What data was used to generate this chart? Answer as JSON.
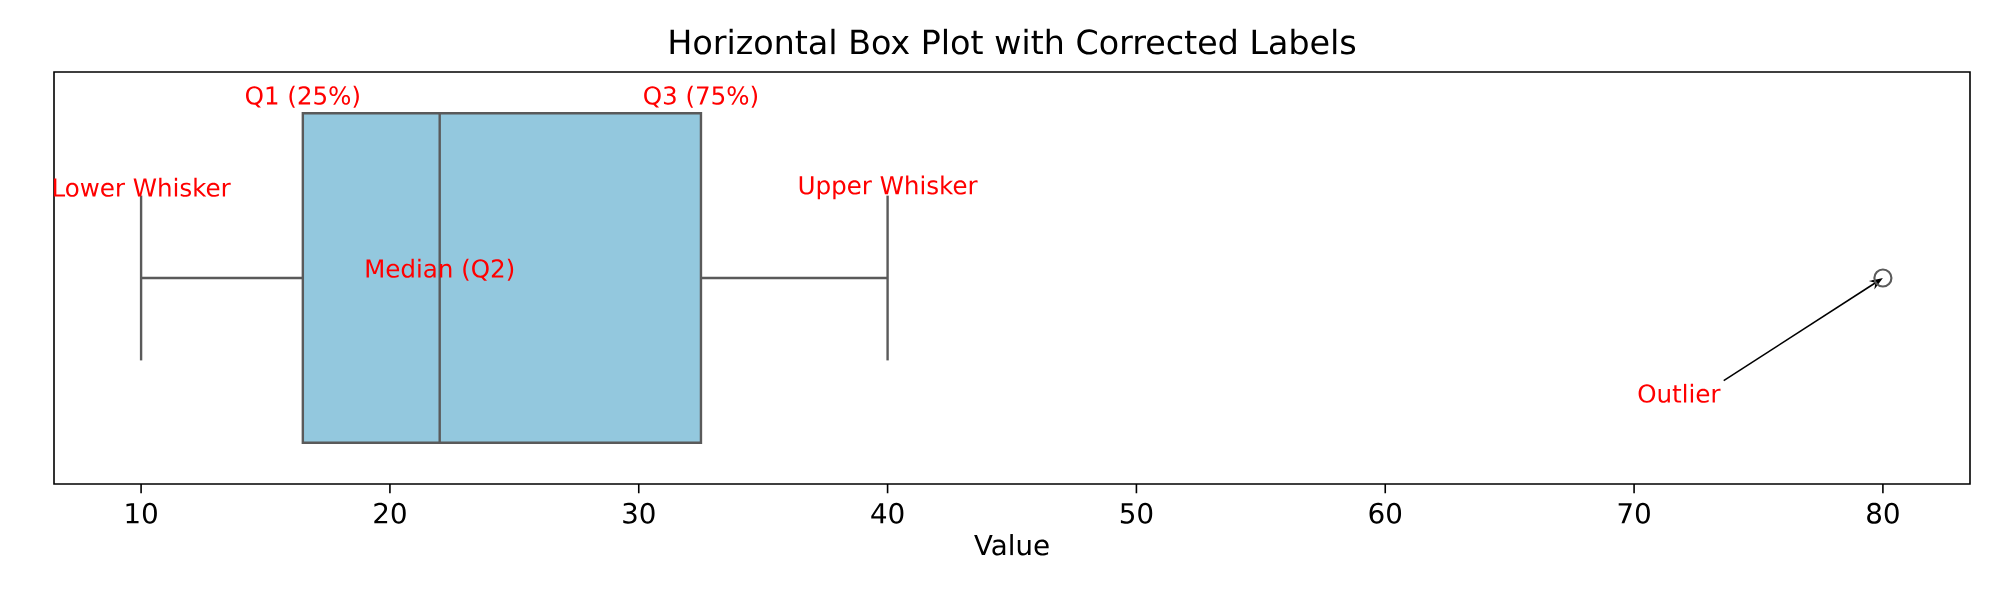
{
  "chart_data": {
    "type": "box",
    "title": "Horizontal Box Plot with Corrected Labels",
    "xlabel": "Value",
    "orientation": "horizontal",
    "categories": [
      null
    ],
    "boxes": [
      {
        "low": 10,
        "q1": 16.5,
        "median": 22,
        "q3": 32.5,
        "high": 40,
        "outliers": [
          80
        ]
      }
    ],
    "color": "#93c8de",
    "xlim": [
      6.5,
      83.5
    ],
    "xticks": [
      10,
      20,
      30,
      40,
      50,
      60,
      70,
      80
    ],
    "tick_labels": "x",
    "annotations": [
      "Q1 (25%)",
      "Q3 (75%)",
      "Lower Whisker",
      "Upper Whisker",
      "Median (Q2)",
      "Outlier"
    ]
  }
}
